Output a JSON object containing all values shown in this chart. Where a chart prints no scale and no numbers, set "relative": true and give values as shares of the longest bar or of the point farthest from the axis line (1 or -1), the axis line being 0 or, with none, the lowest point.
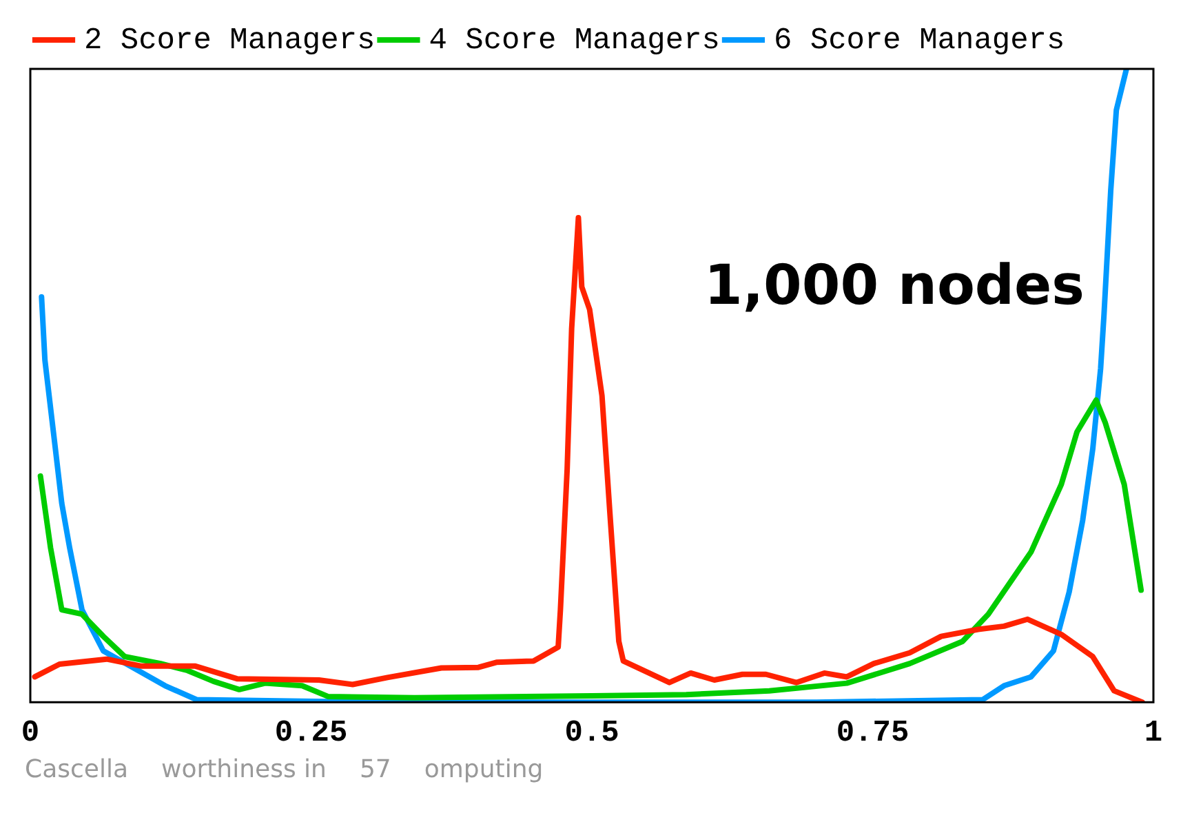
{
  "chart_data": {
    "type": "line",
    "relative": true,
    "xlim": [
      0,
      1
    ],
    "xticks": [
      0,
      0.25,
      0.5,
      0.75,
      1
    ],
    "legend": "top left",
    "marker": "none",
    "line_style": "solid",
    "grid": false,
    "annotations": [
      "1,000 nodes",
      "Cascella",
      "worthiness in",
      "57",
      "omputing"
    ],
    "series": [
      {
        "name": "2 Score Managers",
        "color": "#ff2200",
        "x": [
          0.004,
          0.026,
          0.068,
          0.099,
          0.147,
          0.184,
          0.257,
          0.287,
          0.318,
          0.366,
          0.399,
          0.415,
          0.448,
          0.47,
          0.472,
          0.478,
          0.482,
          0.488,
          0.491,
          0.498,
          0.509,
          0.516,
          0.524,
          0.528,
          0.569,
          0.588,
          0.609,
          0.634,
          0.655,
          0.682,
          0.707,
          0.727,
          0.751,
          0.783,
          0.811,
          0.844,
          0.867,
          0.888,
          0.918,
          0.946,
          0.965,
          0.99
        ],
        "values": [
          0.04,
          0.06,
          0.068,
          0.057,
          0.057,
          0.037,
          0.035,
          0.028,
          0.039,
          0.054,
          0.055,
          0.063,
          0.065,
          0.087,
          0.146,
          0.368,
          0.59,
          0.765,
          0.656,
          0.62,
          0.484,
          0.3,
          0.096,
          0.065,
          0.031,
          0.046,
          0.035,
          0.044,
          0.044,
          0.031,
          0.046,
          0.04,
          0.061,
          0.078,
          0.104,
          0.115,
          0.12,
          0.131,
          0.107,
          0.072,
          0.018,
          0
        ]
      },
      {
        "name": "4 Score Managers",
        "color": "#00cc00",
        "x": [
          0.009,
          0.018,
          0.028,
          0.046,
          0.065,
          0.084,
          0.116,
          0.14,
          0.163,
          0.186,
          0.209,
          0.242,
          0.265,
          0.342,
          0.5,
          0.584,
          0.658,
          0.727,
          0.783,
          0.83,
          0.853,
          0.891,
          0.918,
          0.932,
          0.949,
          0.957,
          0.974,
          0.989
        ],
        "values": [
          0.357,
          0.244,
          0.146,
          0.139,
          0.104,
          0.072,
          0.061,
          0.05,
          0.033,
          0.02,
          0.03,
          0.026,
          0.009,
          0.007,
          0.01,
          0.012,
          0.018,
          0.03,
          0.061,
          0.096,
          0.139,
          0.237,
          0.344,
          0.427,
          0.477,
          0.442,
          0.344,
          0.177
        ]
      },
      {
        "name": "6 Score Managers",
        "color": "#0099ff",
        "x": [
          0.01,
          0.013,
          0.021,
          0.028,
          0.035,
          0.046,
          0.065,
          0.092,
          0.12,
          0.148,
          0.3,
          0.5,
          0.7,
          0.848,
          0.867,
          0.891,
          0.911,
          0.925,
          0.937,
          0.946,
          0.953,
          0.956,
          0.962,
          0.967,
          0.976
        ],
        "values": [
          0.64,
          0.54,
          0.42,
          0.314,
          0.244,
          0.146,
          0.081,
          0.054,
          0.026,
          0.004,
          0,
          0,
          0,
          0.004,
          0.026,
          0.04,
          0.081,
          0.174,
          0.287,
          0.4,
          0.527,
          0.612,
          0.808,
          0.935,
          1
        ]
      }
    ]
  }
}
